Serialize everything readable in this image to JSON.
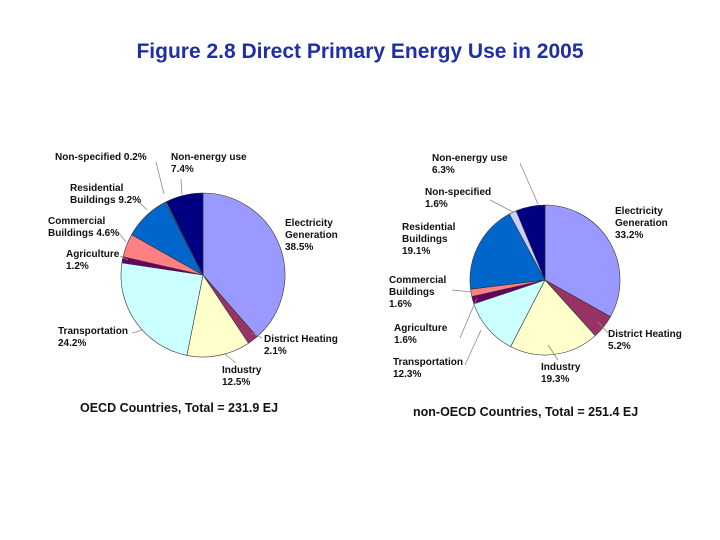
{
  "title": "Figure 2.8 Direct Primary Energy Use in 2005",
  "chart_data": [
    {
      "type": "pie",
      "title": "OECD Countries, Total = 231.9 EJ",
      "slices": [
        {
          "name": "Electricity Generation",
          "value": 38.5,
          "color": "#9999ff",
          "label_lines": [
            "Electricity",
            "Generation",
            "38.5%"
          ]
        },
        {
          "name": "District Heating",
          "value": 2.1,
          "color": "#993366",
          "label_lines": [
            "District Heating",
            "2.1%"
          ]
        },
        {
          "name": "Industry",
          "value": 12.5,
          "color": "#ffffcc",
          "label_lines": [
            "Industry",
            "12.5%"
          ]
        },
        {
          "name": "Transportation",
          "value": 24.2,
          "color": "#ccffff",
          "label_lines": [
            "Transportation",
            "24.2%"
          ]
        },
        {
          "name": "Agriculture",
          "value": 1.2,
          "color": "#660066",
          "label_lines": [
            "Agriculture",
            "1.2%"
          ]
        },
        {
          "name": "Commercial Buildings",
          "value": 4.6,
          "color": "#ff8080",
          "label_lines": [
            "Commercial",
            "Buildings 4.6%"
          ]
        },
        {
          "name": "Residential Buildings",
          "value": 9.2,
          "color": "#0066cc",
          "label_lines": [
            "Residential",
            "Buildings 9.2%"
          ]
        },
        {
          "name": "Non-specified",
          "value": 0.2,
          "color": "#ccccff",
          "label_lines": [
            "Non-specified 0.2%"
          ]
        },
        {
          "name": "Non-energy use",
          "value": 7.4,
          "color": "#000080",
          "label_lines": [
            "Non-energy use",
            "7.4%"
          ]
        }
      ]
    },
    {
      "type": "pie",
      "title": "non-OECD Countries, Total = 251.4 EJ",
      "slices": [
        {
          "name": "Electricity Generation",
          "value": 33.2,
          "color": "#9999ff",
          "label_lines": [
            "Electricity",
            "Generation",
            "33.2%"
          ]
        },
        {
          "name": "District Heating",
          "value": 5.2,
          "color": "#993366",
          "label_lines": [
            "District Heating",
            "5.2%"
          ]
        },
        {
          "name": "Industry",
          "value": 19.3,
          "color": "#ffffcc",
          "label_lines": [
            "Industry",
            "19.3%"
          ]
        },
        {
          "name": "Transportation",
          "value": 12.3,
          "color": "#ccffff",
          "label_lines": [
            "Transportation",
            "12.3%"
          ]
        },
        {
          "name": "Agriculture",
          "value": 1.6,
          "color": "#660066",
          "label_lines": [
            "Agriculture",
            "1.6%"
          ]
        },
        {
          "name": "Commercial Buildings",
          "value": 1.6,
          "color": "#ff8080",
          "label_lines": [
            "Commercial",
            "Buildings",
            "1.6%"
          ]
        },
        {
          "name": "Residential Buildings",
          "value": 19.1,
          "color": "#0066cc",
          "label_lines": [
            "Residential",
            "Buildings",
            "19.1%"
          ]
        },
        {
          "name": "Non-specified",
          "value": 1.6,
          "color": "#ccccff",
          "label_lines": [
            "Non-specified",
            "1.6%"
          ]
        },
        {
          "name": "Non-energy use",
          "value": 6.3,
          "color": "#000080",
          "label_lines": [
            "Non-energy use",
            "6.3%"
          ]
        }
      ]
    }
  ]
}
